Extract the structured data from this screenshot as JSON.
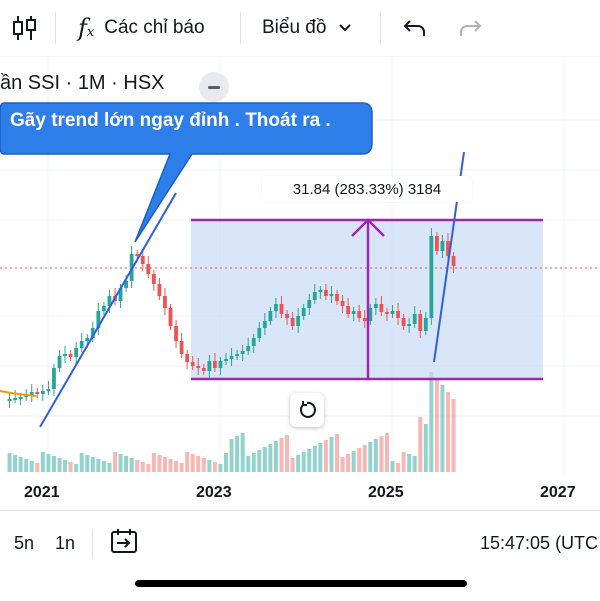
{
  "toolbar": {
    "indicators_label": "Các chỉ báo",
    "chart_type_label": "Biểu đồ"
  },
  "symbol": {
    "title": "ần SSI · 1M · HSX"
  },
  "annotation": {
    "callout": "Gãy trend lớn ngay đỉnh . Thoát ra ."
  },
  "measure": {
    "label": "31.84 (283.33%) 3184"
  },
  "x_axis": {
    "labels": [
      "2021",
      "2023",
      "2025",
      "2027"
    ]
  },
  "bottom": {
    "range_5y": "5n",
    "range_1y": "1n",
    "clock": "15:47:05 (UTC"
  },
  "colors": {
    "up": "#26a69a",
    "down": "#ef5350",
    "callout_bg": "#2d7ee8",
    "trendline": "#2f5fe0",
    "range_box": "#9c27b0"
  }
}
